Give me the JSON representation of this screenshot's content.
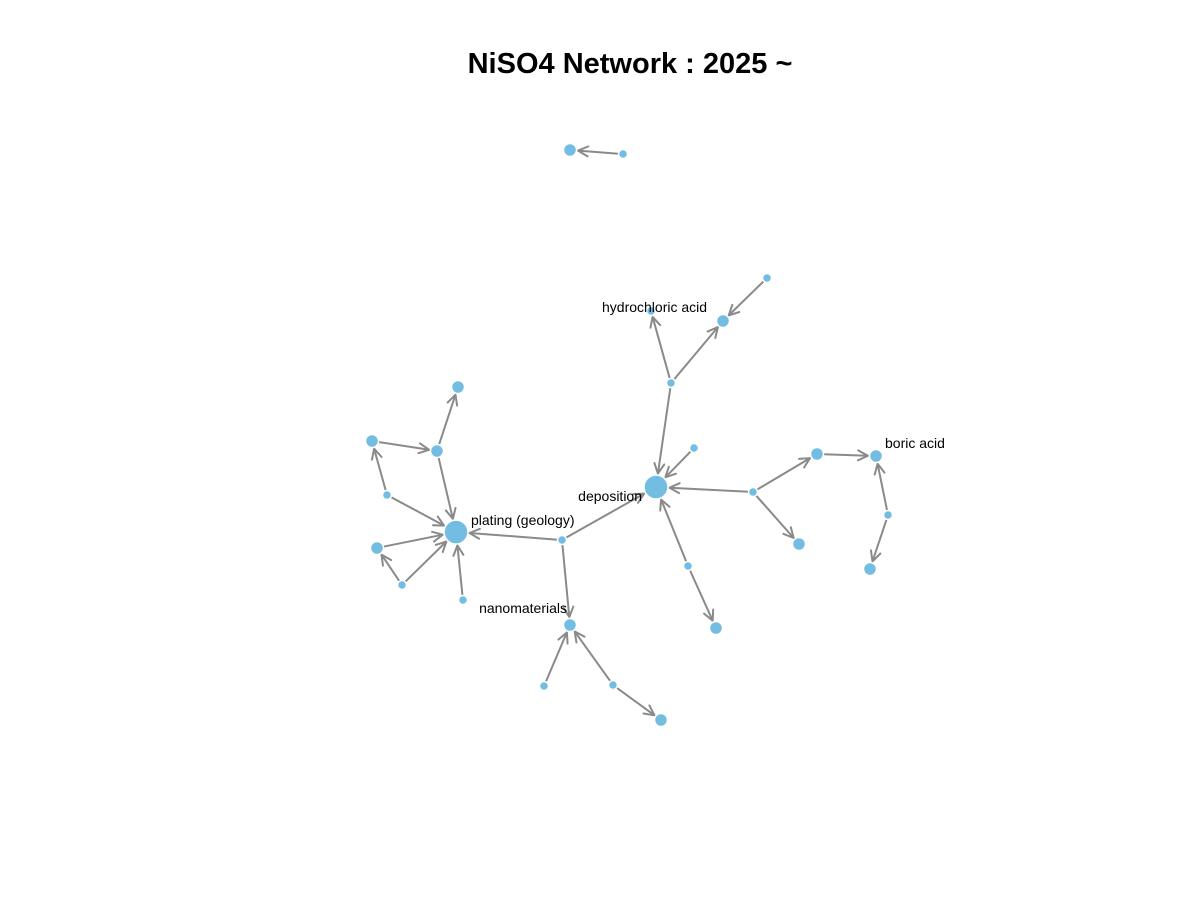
{
  "title": "NiSO4 Network : 2025 ~",
  "colors": {
    "node": "#74bde2",
    "edge": "#8a8a8a",
    "background": "#ffffff"
  },
  "network": {
    "directed": true,
    "nodes": [
      {
        "id": "plating",
        "label": "plating (geology)",
        "size": "large"
      },
      {
        "id": "deposition",
        "label": "deposition",
        "size": "large"
      },
      {
        "id": "nanomaterials",
        "label": "nanomaterials",
        "size": "medium"
      },
      {
        "id": "hydrochloric",
        "label": "hydrochloric acid",
        "size": "small"
      },
      {
        "id": "boric",
        "label": "boric acid",
        "size": "medium"
      },
      {
        "id": "top_a",
        "label": "",
        "size": "medium"
      },
      {
        "id": "top_b",
        "label": "",
        "size": "small"
      },
      {
        "id": "hub_c",
        "label": "",
        "size": "small"
      },
      {
        "id": "hc_right",
        "label": "",
        "size": "medium"
      },
      {
        "id": "hc_far",
        "label": "",
        "size": "small"
      },
      {
        "id": "dep_small",
        "label": "",
        "size": "small"
      },
      {
        "id": "dep_hub",
        "label": "",
        "size": "small"
      },
      {
        "id": "dep_mid",
        "label": "",
        "size": "medium"
      },
      {
        "id": "dep_low",
        "label": "",
        "size": "medium"
      },
      {
        "id": "boric_hub",
        "label": "",
        "size": "small"
      },
      {
        "id": "boric_low",
        "label": "",
        "size": "medium"
      },
      {
        "id": "dep_below",
        "label": "",
        "size": "small"
      },
      {
        "id": "dep_below_t",
        "label": "",
        "size": "medium"
      },
      {
        "id": "center_hub",
        "label": "",
        "size": "small"
      },
      {
        "id": "nano_a",
        "label": "",
        "size": "small"
      },
      {
        "id": "nano_b",
        "label": "",
        "size": "small"
      },
      {
        "id": "nano_c",
        "label": "",
        "size": "medium"
      },
      {
        "id": "pl_top",
        "label": "",
        "size": "medium"
      },
      {
        "id": "pl_top2",
        "label": "",
        "size": "medium"
      },
      {
        "id": "pl_left",
        "label": "",
        "size": "medium"
      },
      {
        "id": "pl_hub1",
        "label": "",
        "size": "small"
      },
      {
        "id": "pl_left2",
        "label": "",
        "size": "medium"
      },
      {
        "id": "pl_hub2",
        "label": "",
        "size": "small"
      },
      {
        "id": "pl_below",
        "label": "",
        "size": "small"
      }
    ],
    "edges": [
      {
        "from": "top_b",
        "to": "top_a"
      },
      {
        "from": "hc_far",
        "to": "hc_right"
      },
      {
        "from": "hub_c",
        "to": "hydrochloric"
      },
      {
        "from": "hub_c",
        "to": "hc_right"
      },
      {
        "from": "hub_c",
        "to": "deposition"
      },
      {
        "from": "dep_small",
        "to": "deposition"
      },
      {
        "from": "dep_hub",
        "to": "deposition"
      },
      {
        "from": "dep_hub",
        "to": "dep_mid"
      },
      {
        "from": "dep_hub",
        "to": "dep_low"
      },
      {
        "from": "dep_mid",
        "to": "boric"
      },
      {
        "from": "boric_hub",
        "to": "boric"
      },
      {
        "from": "boric_hub",
        "to": "boric_low"
      },
      {
        "from": "dep_below",
        "to": "deposition"
      },
      {
        "from": "dep_below",
        "to": "dep_below_t"
      },
      {
        "from": "center_hub",
        "to": "deposition"
      },
      {
        "from": "center_hub",
        "to": "plating"
      },
      {
        "from": "center_hub",
        "to": "nanomaterials"
      },
      {
        "from": "nano_a",
        "to": "nanomaterials"
      },
      {
        "from": "nano_b",
        "to": "nanomaterials"
      },
      {
        "from": "nano_b",
        "to": "nano_c"
      },
      {
        "from": "pl_top2",
        "to": "pl_top"
      },
      {
        "from": "pl_top2",
        "to": "plating"
      },
      {
        "from": "pl_left",
        "to": "pl_top2"
      },
      {
        "from": "pl_hub1",
        "to": "pl_left"
      },
      {
        "from": "pl_hub1",
        "to": "plating"
      },
      {
        "from": "pl_left2",
        "to": "plating"
      },
      {
        "from": "pl_hub2",
        "to": "pl_left2"
      },
      {
        "from": "pl_hub2",
        "to": "plating"
      },
      {
        "from": "pl_below",
        "to": "plating"
      }
    ]
  }
}
